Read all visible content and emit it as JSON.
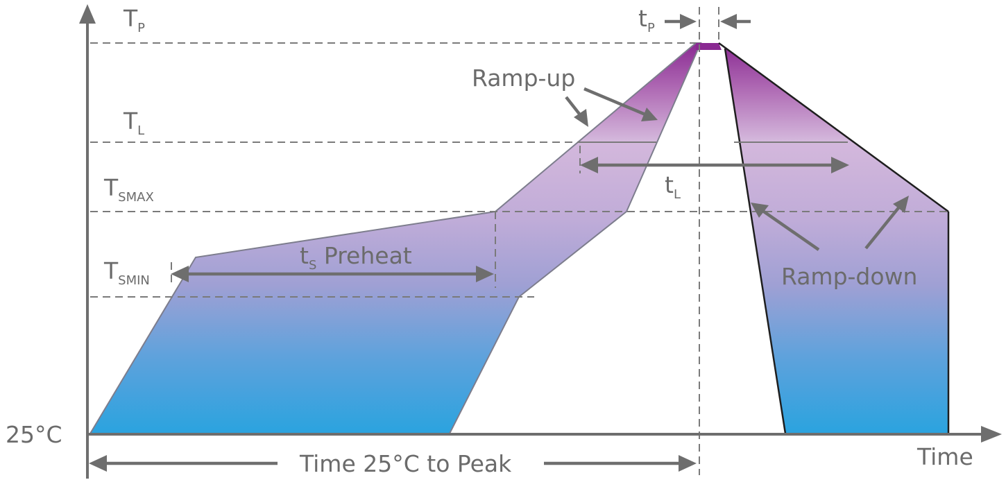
{
  "labels": {
    "tp_main": "T",
    "tp_sub": "P",
    "tl_main": "T",
    "tl_sub": "L",
    "tsmax_main": "T",
    "tsmax_sub": "SMAX",
    "tsmin_main": "T",
    "tsmin_sub": "SMIN",
    "y_origin": "25°C",
    "x_axis": "Time",
    "time_to_peak": "Time 25°C to Peak",
    "t_peak_main": "t",
    "t_peak_sub": "P",
    "t_liquidus_main": "t",
    "t_liquidus_sub": "L",
    "preheat_main": "t",
    "preheat_sub": "S",
    "preheat_text": " Preheat",
    "ramp_up": "Ramp-up",
    "ramp_down": "Ramp-down"
  },
  "colors": {
    "peak": "#8a2a92",
    "mid": "#b9a7d4",
    "low": "#2aa3df",
    "axis": "#6e6e6e",
    "text": "#6b6b6b"
  }
}
